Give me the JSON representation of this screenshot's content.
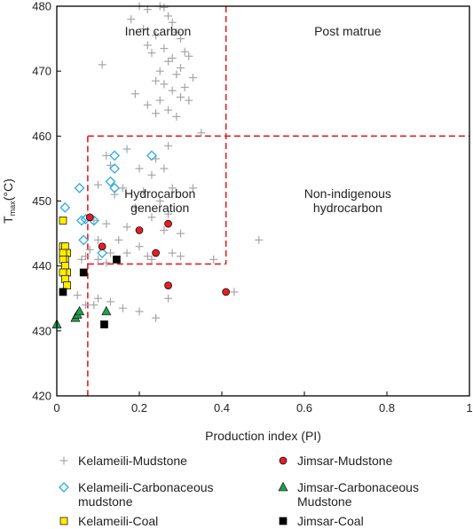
{
  "chart_data": {
    "type": "scatter",
    "xlabel": "Production index (PI)",
    "ylabel_main": "T",
    "ylabel_sub": "max",
    "ylabel_unit": "(°C)",
    "xlim": [
      0,
      1
    ],
    "ylim": [
      420,
      480
    ],
    "x_ticks": [
      "0",
      "0.2",
      "0.4",
      "0.6",
      "0.8",
      "1"
    ],
    "y_ticks": [
      "420",
      "430",
      "440",
      "450",
      "460",
      "470",
      "480"
    ],
    "grid": false,
    "region_labels": [
      {
        "key": "inert",
        "lines": [
          "Inert carbon"
        ]
      },
      {
        "key": "postmature",
        "lines": [
          "Post matrue"
        ]
      },
      {
        "key": "hydrocarbon",
        "lines": [
          "Hydrocarbon",
          "generation"
        ]
      },
      {
        "key": "nonindigenous",
        "lines": [
          "Non-indigenous",
          "hydrocarbon"
        ]
      }
    ],
    "boundaries": [
      {
        "x": [
          0.41,
          0.41
        ],
        "y": [
          480,
          440.3
        ]
      },
      {
        "x": [
          0.075,
          0.41
        ],
        "y": [
          440.3,
          440.3
        ]
      },
      {
        "x": [
          0.075,
          1.0
        ],
        "y": [
          460,
          460
        ]
      },
      {
        "x": [
          0.075,
          0.075
        ],
        "y": [
          460,
          420
        ]
      }
    ],
    "series": [
      {
        "name": "Kelameili-Mudstone",
        "marker": "plus",
        "color": "#a6a6a6",
        "x": [
          0.2,
          0.22,
          0.25,
          0.26,
          0.27,
          0.28,
          0.18,
          0.21,
          0.24,
          0.29,
          0.3,
          0.22,
          0.26,
          0.31,
          0.28,
          0.23,
          0.27,
          0.32,
          0.3,
          0.25,
          0.29,
          0.24,
          0.26,
          0.31,
          0.33,
          0.11,
          0.28,
          0.3,
          0.19,
          0.25,
          0.22,
          0.27,
          0.24,
          0.29,
          0.32,
          0.35,
          0.12,
          0.17,
          0.27,
          0.24,
          0.13,
          0.2,
          0.26,
          0.23,
          0.28,
          0.1,
          0.16,
          0.33,
          0.21,
          0.14,
          0.25,
          0.19,
          0.27,
          0.09,
          0.23,
          0.12,
          0.17,
          0.26,
          0.3,
          0.1,
          0.15,
          0.2,
          0.08,
          0.13,
          0.07,
          0.28,
          0.22,
          0.06,
          0.1,
          0.12,
          0.17,
          0.23,
          0.3,
          0.38,
          0.49,
          0.43,
          0.2,
          0.24,
          0.27,
          0.09,
          0.1,
          0.13,
          0.16,
          0.05,
          0.07
        ],
        "y": [
          480,
          479.5,
          480,
          479.8,
          478.5,
          477.5,
          478,
          476.5,
          475.5,
          476,
          475,
          474,
          473.5,
          473,
          472,
          472.8,
          471.5,
          472.3,
          470.5,
          470,
          469.5,
          468.5,
          468,
          467.5,
          469,
          471,
          467,
          466,
          466.5,
          465.5,
          464.8,
          464,
          463.5,
          463,
          465.5,
          460.5,
          457,
          458,
          458.5,
          456.5,
          455.5,
          455,
          455,
          454,
          452,
          452.5,
          452,
          452,
          451.5,
          451,
          450,
          449,
          448,
          447,
          447.5,
          446.5,
          446,
          445.5,
          445,
          444,
          444,
          443,
          442.5,
          442,
          441.5,
          442,
          441.5,
          441,
          441,
          440.5,
          442,
          441,
          441.5,
          441,
          444,
          436,
          433,
          432,
          435,
          434,
          435,
          434.5,
          433.5,
          435.5,
          434
        ]
      },
      {
        "name": "Kelameili-Carbonaceous mudstone",
        "marker": "diamond",
        "color": "#29abe2",
        "x": [
          0.055,
          0.06,
          0.07,
          0.09,
          0.02,
          0.14,
          0.14,
          0.13,
          0.14,
          0.23,
          0.065,
          0.11
        ],
        "y": [
          452,
          447,
          447.2,
          447,
          449,
          457,
          455,
          453,
          452,
          457,
          444,
          442
        ]
      },
      {
        "name": "Kelameili-Coal",
        "marker": "square",
        "color": "#ffed00",
        "x": [
          0.015,
          0.015,
          0.02,
          0.025,
          0.015,
          0.02,
          0.015,
          0.02,
          0.025,
          0.015,
          0.02,
          0.025
        ],
        "y": [
          447,
          443,
          443,
          442,
          442,
          441,
          441,
          440,
          439,
          439,
          438,
          437
        ]
      },
      {
        "name": "Jimsar-Mudstone",
        "marker": "circle",
        "color": "#e31e24",
        "x": [
          0.08,
          0.11,
          0.2,
          0.27,
          0.24,
          0.27,
          0.41
        ],
        "y": [
          447.5,
          443,
          445.5,
          446.5,
          442,
          437,
          436
        ]
      },
      {
        "name": "Jimsar-Carbonaceous Mudstone",
        "marker": "triangle",
        "color": "#1f9e49",
        "x": [
          0.0,
          0.045,
          0.05,
          0.055,
          0.12
        ],
        "y": [
          431,
          432,
          432.5,
          433,
          433
        ]
      },
      {
        "name": "Jimsar-Coal",
        "marker": "square",
        "color": "#000000",
        "x": [
          0.015,
          0.065,
          0.145,
          0.115
        ],
        "y": [
          436,
          439,
          441,
          431
        ]
      }
    ],
    "legend": {
      "placement": "bottom",
      "entries": [
        {
          "label_lines": [
            "Kelameili-Mudstone"
          ],
          "marker": "plus",
          "color": "#a6a6a6"
        },
        {
          "label_lines": [
            "Jimsar-Mudstone"
          ],
          "marker": "circle",
          "color": "#e31e24"
        },
        {
          "label_lines": [
            "Kelameili-Carbonaceous",
            "mudstone"
          ],
          "marker": "diamond",
          "color": "#29abe2"
        },
        {
          "label_lines": [
            "Jimsar-Carbonaceous",
            "Mudstone"
          ],
          "marker": "triangle",
          "color": "#1f9e49"
        },
        {
          "label_lines": [
            "Kelameili-Coal"
          ],
          "marker": "square",
          "color": "#ffed00"
        },
        {
          "label_lines": [
            "Jimsar-Coal"
          ],
          "marker": "square",
          "color": "#000000"
        }
      ]
    },
    "colors": {
      "boundary": "#e31e24",
      "axis": "#000000"
    }
  }
}
